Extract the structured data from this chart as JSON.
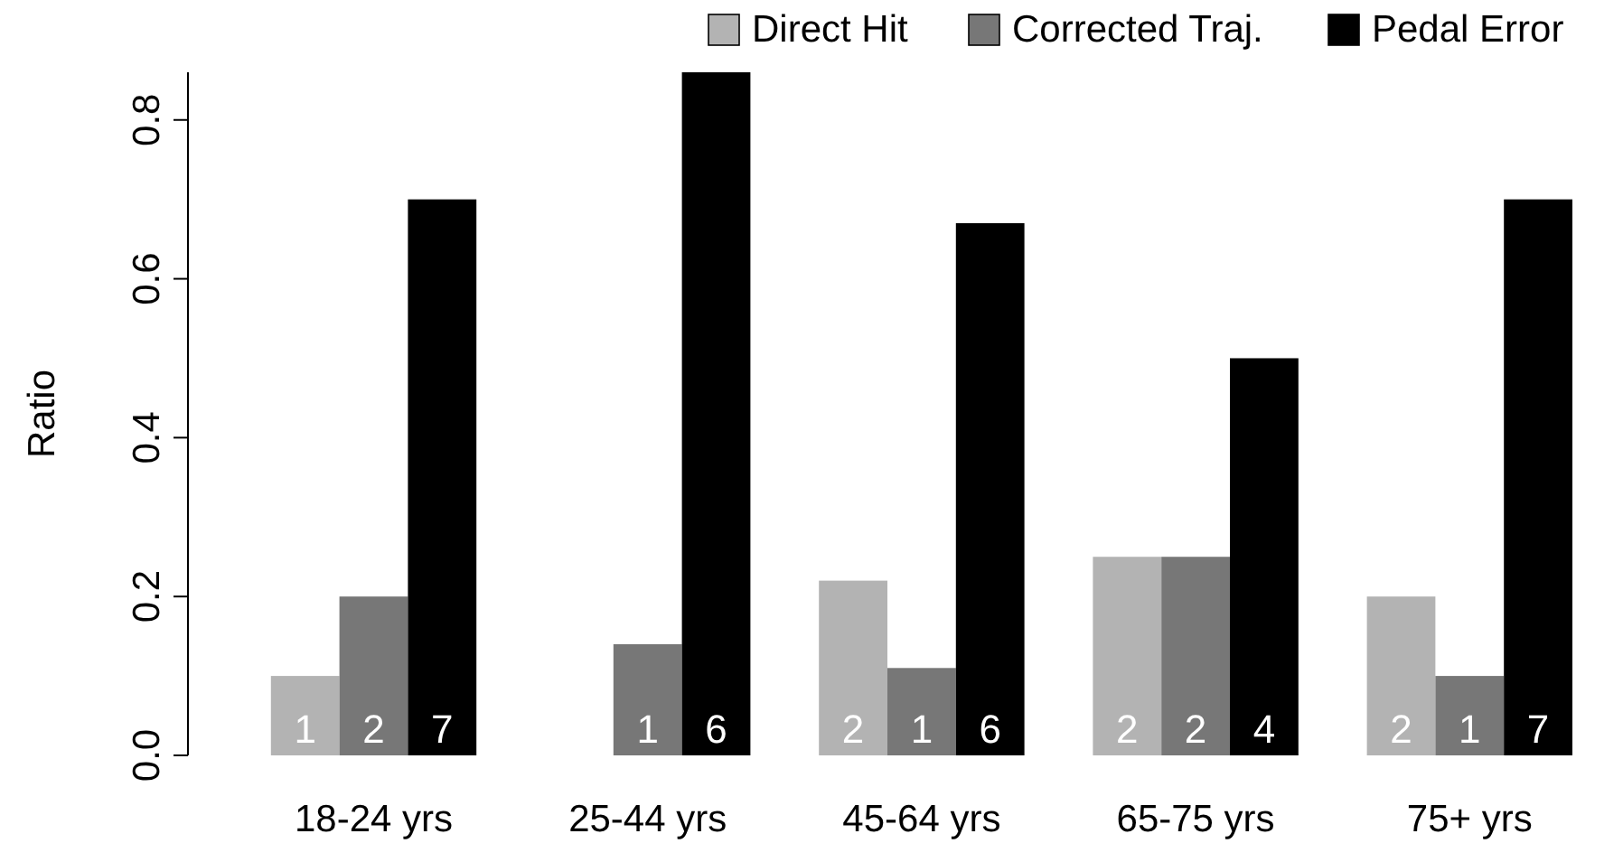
{
  "chart_data": {
    "type": "bar",
    "ylabel": "Ratio",
    "categories": [
      "18-24 yrs",
      "25-44 yrs",
      "45-64 yrs",
      "65-75 yrs",
      "75+ yrs"
    ],
    "series": [
      {
        "name": "Direct Hit",
        "color": "#b3b3b3",
        "values": [
          0.1,
          0,
          0.22,
          0.25,
          0.2
        ]
      },
      {
        "name": "Corrected Traj.",
        "color": "#777777",
        "values": [
          0.2,
          0.14,
          0.11,
          0.25,
          0.1
        ]
      },
      {
        "name": "Pedal Error",
        "color": "#000000",
        "values": [
          0.7,
          0.86,
          0.67,
          0.5,
          0.7
        ]
      }
    ],
    "annotations": [
      "1",
      "2",
      "7",
      "1",
      "6",
      "2",
      "1",
      "6",
      "2",
      "2",
      "4",
      "2",
      "1",
      "7"
    ],
    "ylim": [
      0,
      0.86
    ],
    "yticks": [
      {
        "value": 0,
        "label": "0.0"
      },
      {
        "value": 0.2,
        "label": "0.2"
      },
      {
        "value": 0.4,
        "label": "0.4"
      },
      {
        "value": 0.6,
        "label": "0.6"
      },
      {
        "value": 0.8,
        "label": "0.8"
      }
    ],
    "legend": "top right",
    "grid": false
  }
}
